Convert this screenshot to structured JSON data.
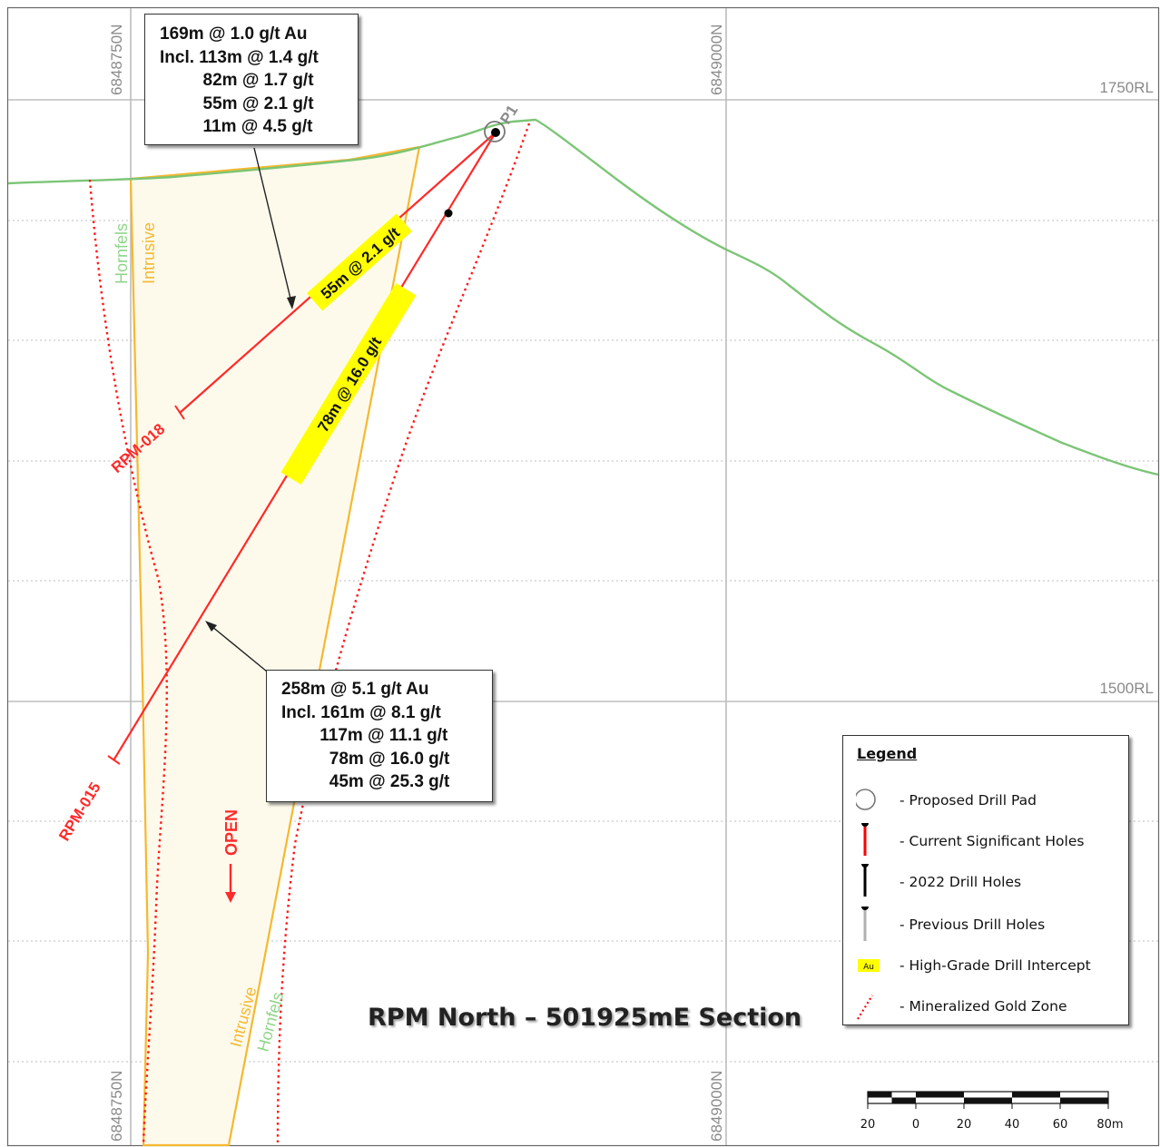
{
  "grid": {
    "northing_left": "6848750N",
    "northing_right": "6849000N",
    "rl_upper": "1750RL",
    "rl_lower": "1500RL"
  },
  "drill_pad": {
    "label": "P1"
  },
  "holes": {
    "upper": {
      "name": "RPM-018",
      "intercept_label": "55m @ 2.1 g/t"
    },
    "lower": {
      "name": "RPM-015",
      "intercept_label": "78m @ 16.0 g/t"
    }
  },
  "geology": {
    "hornfels": "Hornfels",
    "intrusive": "Intrusive"
  },
  "open_label": "OPEN",
  "callouts": {
    "upper": [
      "169m @ 1.0 g/t Au",
      "Incl. 113m @ 1.4 g/t",
      "         82m @ 1.7 g/t",
      "         55m @ 2.1 g/t",
      "         11m @ 4.5 g/t"
    ],
    "lower": [
      "258m @ 5.1 g/t Au",
      "Incl. 161m @ 8.1 g/t",
      "        117m @ 11.1 g/t",
      "          78m @ 16.0 g/t",
      "          45m @ 25.3 g/t"
    ]
  },
  "title": "RPM North – 501925mE Section",
  "legend": {
    "title": "Legend",
    "items": [
      {
        "icon": "proposed-drill-pad-icon",
        "label": "-  Proposed Drill Pad"
      },
      {
        "icon": "current-significant-hole-icon",
        "label": "-  Current Significant Holes",
        "color": "#ff0000"
      },
      {
        "icon": "drill-hole-2022-icon",
        "label": "-  2022 Drill Holes",
        "color": "#000000"
      },
      {
        "icon": "previous-drill-hole-icon",
        "label": "-  Previous Drill Holes",
        "color": "#b0b0b0"
      },
      {
        "icon": "high-grade-intercept-icon",
        "label": "-  High-Grade Drill Intercept",
        "swatch_text": "Au",
        "color": "#ffff00"
      },
      {
        "icon": "mineralized-zone-icon",
        "label": "-  Mineralized Gold Zone",
        "color": "#ff0000"
      }
    ]
  },
  "scale_bar": {
    "labels": [
      "20",
      "0",
      "20",
      "40",
      "60",
      "80m"
    ]
  },
  "colors": {
    "topography": "#7cc576",
    "hole": "#ff2a2a",
    "zone_fill": "#fdfaec",
    "zone_outline": "#f5b830",
    "highlight": "#ffff00",
    "grid": "#c8c8c8"
  }
}
